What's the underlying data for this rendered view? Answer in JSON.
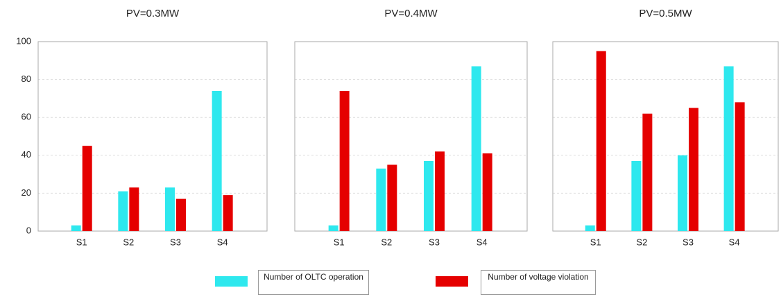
{
  "chart_data": [
    {
      "type": "bar",
      "title": "PV=0.3MW",
      "categories": [
        "S1",
        "S2",
        "S3",
        "S4"
      ],
      "series": [
        {
          "name": "Number of OLTC operation",
          "color": "#2ee8ee",
          "values": [
            3,
            21,
            23,
            74
          ]
        },
        {
          "name": "Number of voltage violation",
          "color": "#e50000",
          "values": [
            45,
            23,
            17,
            19
          ]
        }
      ],
      "ylim": [
        0,
        100
      ],
      "yticks": [
        0,
        20,
        40,
        60,
        80,
        100
      ],
      "grid": true
    },
    {
      "type": "bar",
      "title": "PV=0.4MW",
      "categories": [
        "S1",
        "S2",
        "S3",
        "S4"
      ],
      "series": [
        {
          "name": "Number of OLTC operation",
          "color": "#2ee8ee",
          "values": [
            3,
            33,
            37,
            87
          ]
        },
        {
          "name": "Number of voltage violation",
          "color": "#e50000",
          "values": [
            74,
            35,
            42,
            41
          ]
        }
      ],
      "ylim": [
        0,
        100
      ],
      "yticks": [
        0,
        20,
        40,
        60,
        80,
        100
      ],
      "grid": true
    },
    {
      "type": "bar",
      "title": "PV=0.5MW",
      "categories": [
        "S1",
        "S2",
        "S3",
        "S4"
      ],
      "series": [
        {
          "name": "Number of OLTC operation",
          "color": "#2ee8ee",
          "values": [
            3,
            37,
            40,
            87
          ]
        },
        {
          "name": "Number of voltage violation",
          "color": "#e50000",
          "values": [
            95,
            62,
            65,
            68
          ]
        }
      ],
      "ylim": [
        0,
        100
      ],
      "yticks": [
        0,
        20,
        40,
        60,
        80,
        100
      ],
      "grid": true
    }
  ]
}
